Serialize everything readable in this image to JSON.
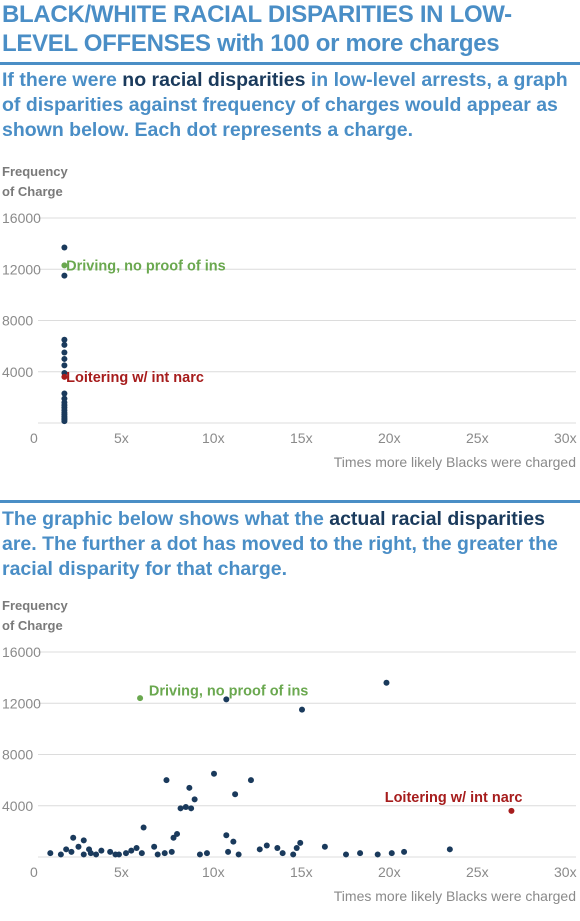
{
  "title": "BLACK/WHITE RACIAL DISPARITIES IN LOW-LEVEL OFFENSES with 100 or more charges",
  "intro1": {
    "before": "If there were ",
    "highlight": "no racial disparities",
    "after": " in low-level arrests, a graph of disparities against frequency of charges would appear as shown below. Each dot represents a charge."
  },
  "intro2": {
    "before": "The graphic below shows what the ",
    "highlight": "actual racial disparities",
    "after": " are. The further a dot has moved to the right, the greater the racial disparity for that charge."
  },
  "colors": {
    "accent": "#4a8ec6",
    "dot": "#1a3a5c",
    "green": "#6aa84f",
    "red": "#a61c1c",
    "grid": "#dcdcdc"
  },
  "chart_data": [
    {
      "type": "scatter",
      "ylabel": [
        "Frequency",
        "of Charge"
      ],
      "xlabel": "Times more likely Blacks were charged",
      "xlim": [
        0,
        30
      ],
      "ylim": [
        0,
        16000
      ],
      "x_ticks": [
        0,
        5,
        10,
        15,
        20,
        25,
        30
      ],
      "x_tick_labels": [
        "0",
        "5x",
        "10x",
        "15x",
        "20x",
        "25x",
        "30x"
      ],
      "y_ticks": [
        4000,
        8000,
        12000,
        16000
      ],
      "y_tick_labels": [
        "4000",
        "8000",
        "12000",
        "16000"
      ],
      "grid": "horizontal",
      "annotations": [
        {
          "text": "Driving, no proof of ins",
          "x": 1.6,
          "y": 12300,
          "color": "green"
        },
        {
          "text": "Loitering w/ int narc",
          "x": 1.6,
          "y": 3600,
          "color": "red"
        }
      ],
      "points": [
        {
          "x": 1.5,
          "y": 13700,
          "color": "dot"
        },
        {
          "x": 1.5,
          "y": 12300,
          "color": "green"
        },
        {
          "x": 1.5,
          "y": 11500,
          "color": "dot"
        },
        {
          "x": 1.5,
          "y": 6500,
          "color": "dot"
        },
        {
          "x": 1.5,
          "y": 6100,
          "color": "dot"
        },
        {
          "x": 1.5,
          "y": 5500,
          "color": "dot"
        },
        {
          "x": 1.5,
          "y": 5000,
          "color": "dot"
        },
        {
          "x": 1.5,
          "y": 4500,
          "color": "dot"
        },
        {
          "x": 1.5,
          "y": 3900,
          "color": "dot"
        },
        {
          "x": 1.5,
          "y": 3600,
          "color": "red"
        },
        {
          "x": 1.5,
          "y": 2300,
          "color": "dot"
        },
        {
          "x": 1.5,
          "y": 1900,
          "color": "dot"
        },
        {
          "x": 1.5,
          "y": 1600,
          "color": "dot"
        },
        {
          "x": 1.5,
          "y": 1400,
          "color": "dot"
        },
        {
          "x": 1.5,
          "y": 1200,
          "color": "dot"
        },
        {
          "x": 1.5,
          "y": 1000,
          "color": "dot"
        },
        {
          "x": 1.5,
          "y": 800,
          "color": "dot"
        },
        {
          "x": 1.5,
          "y": 650,
          "color": "dot"
        },
        {
          "x": 1.5,
          "y": 500,
          "color": "dot"
        },
        {
          "x": 1.5,
          "y": 380,
          "color": "dot"
        },
        {
          "x": 1.5,
          "y": 260,
          "color": "dot"
        },
        {
          "x": 1.5,
          "y": 150,
          "color": "dot"
        }
      ]
    },
    {
      "type": "scatter",
      "ylabel": [
        "Frequency",
        "of Charge"
      ],
      "xlabel": "Times more likely Blacks were charged",
      "xlim": [
        0,
        30
      ],
      "ylim": [
        0,
        16000
      ],
      "x_ticks": [
        0,
        5,
        10,
        15,
        20,
        25,
        30
      ],
      "x_tick_labels": [
        "0",
        "5x",
        "10x",
        "15x",
        "20x",
        "25x",
        "30x"
      ],
      "y_ticks": [
        4000,
        8000,
        12000,
        16000
      ],
      "y_tick_labels": [
        "4000",
        "8000",
        "12000",
        "16000"
      ],
      "grid": "horizontal",
      "annotations": [
        {
          "text": "Driving, no proof of ins",
          "x": 6.3,
          "y": 13000,
          "color": "green"
        },
        {
          "text": "Loitering w/ int narc",
          "x": 19.7,
          "y": 4700,
          "color": "red"
        }
      ],
      "points": [
        {
          "x": 5.8,
          "y": 12400,
          "color": "green"
        },
        {
          "x": 26.9,
          "y": 3600,
          "color": "red"
        },
        {
          "x": 19.8,
          "y": 13600,
          "color": "dot"
        },
        {
          "x": 10.7,
          "y": 12300,
          "color": "dot"
        },
        {
          "x": 15.0,
          "y": 11500,
          "color": "dot"
        },
        {
          "x": 7.3,
          "y": 6000,
          "color": "dot"
        },
        {
          "x": 10.0,
          "y": 6500,
          "color": "dot"
        },
        {
          "x": 12.1,
          "y": 6000,
          "color": "dot"
        },
        {
          "x": 8.6,
          "y": 5400,
          "color": "dot"
        },
        {
          "x": 11.2,
          "y": 4900,
          "color": "dot"
        },
        {
          "x": 8.9,
          "y": 4500,
          "color": "dot"
        },
        {
          "x": 8.4,
          "y": 3900,
          "color": "dot"
        },
        {
          "x": 8.7,
          "y": 3800,
          "color": "dot"
        },
        {
          "x": 8.1,
          "y": 3800,
          "color": "dot"
        },
        {
          "x": 6.0,
          "y": 2300,
          "color": "dot"
        },
        {
          "x": 7.9,
          "y": 1800,
          "color": "dot"
        },
        {
          "x": 7.7,
          "y": 1500,
          "color": "dot"
        },
        {
          "x": 10.7,
          "y": 1700,
          "color": "dot"
        },
        {
          "x": 11.1,
          "y": 1200,
          "color": "dot"
        },
        {
          "x": 14.9,
          "y": 1100,
          "color": "dot"
        },
        {
          "x": 2.0,
          "y": 1500,
          "color": "dot"
        },
        {
          "x": 2.6,
          "y": 1300,
          "color": "dot"
        },
        {
          "x": 16.3,
          "y": 800,
          "color": "dot"
        },
        {
          "x": 23.4,
          "y": 600,
          "color": "dot"
        },
        {
          "x": 13.0,
          "y": 900,
          "color": "dot"
        },
        {
          "x": 13.6,
          "y": 700,
          "color": "dot"
        },
        {
          "x": 12.6,
          "y": 600,
          "color": "dot"
        },
        {
          "x": 14.7,
          "y": 700,
          "color": "dot"
        },
        {
          "x": 0.7,
          "y": 300,
          "color": "dot"
        },
        {
          "x": 1.3,
          "y": 200,
          "color": "dot"
        },
        {
          "x": 1.9,
          "y": 400,
          "color": "dot"
        },
        {
          "x": 2.3,
          "y": 800,
          "color": "dot"
        },
        {
          "x": 2.6,
          "y": 200,
          "color": "dot"
        },
        {
          "x": 3.0,
          "y": 300,
          "color": "dot"
        },
        {
          "x": 3.3,
          "y": 200,
          "color": "dot"
        },
        {
          "x": 3.6,
          "y": 500,
          "color": "dot"
        },
        {
          "x": 4.1,
          "y": 400,
          "color": "dot"
        },
        {
          "x": 4.6,
          "y": 200,
          "color": "dot"
        },
        {
          "x": 5.0,
          "y": 300,
          "color": "dot"
        },
        {
          "x": 5.3,
          "y": 500,
          "color": "dot"
        },
        {
          "x": 5.6,
          "y": 700,
          "color": "dot"
        },
        {
          "x": 5.9,
          "y": 300,
          "color": "dot"
        },
        {
          "x": 6.6,
          "y": 800,
          "color": "dot"
        },
        {
          "x": 6.8,
          "y": 200,
          "color": "dot"
        },
        {
          "x": 7.2,
          "y": 300,
          "color": "dot"
        },
        {
          "x": 7.6,
          "y": 400,
          "color": "dot"
        },
        {
          "x": 9.6,
          "y": 300,
          "color": "dot"
        },
        {
          "x": 10.8,
          "y": 400,
          "color": "dot"
        },
        {
          "x": 11.4,
          "y": 200,
          "color": "dot"
        },
        {
          "x": 13.9,
          "y": 300,
          "color": "dot"
        },
        {
          "x": 14.5,
          "y": 200,
          "color": "dot"
        },
        {
          "x": 17.5,
          "y": 200,
          "color": "dot"
        },
        {
          "x": 18.3,
          "y": 300,
          "color": "dot"
        },
        {
          "x": 19.3,
          "y": 200,
          "color": "dot"
        },
        {
          "x": 20.1,
          "y": 300,
          "color": "dot"
        },
        {
          "x": 20.8,
          "y": 400,
          "color": "dot"
        },
        {
          "x": 4.4,
          "y": 200,
          "color": "dot"
        },
        {
          "x": 9.2,
          "y": 200,
          "color": "dot"
        },
        {
          "x": 1.6,
          "y": 600,
          "color": "dot"
        },
        {
          "x": 2.9,
          "y": 600,
          "color": "dot"
        }
      ]
    }
  ]
}
